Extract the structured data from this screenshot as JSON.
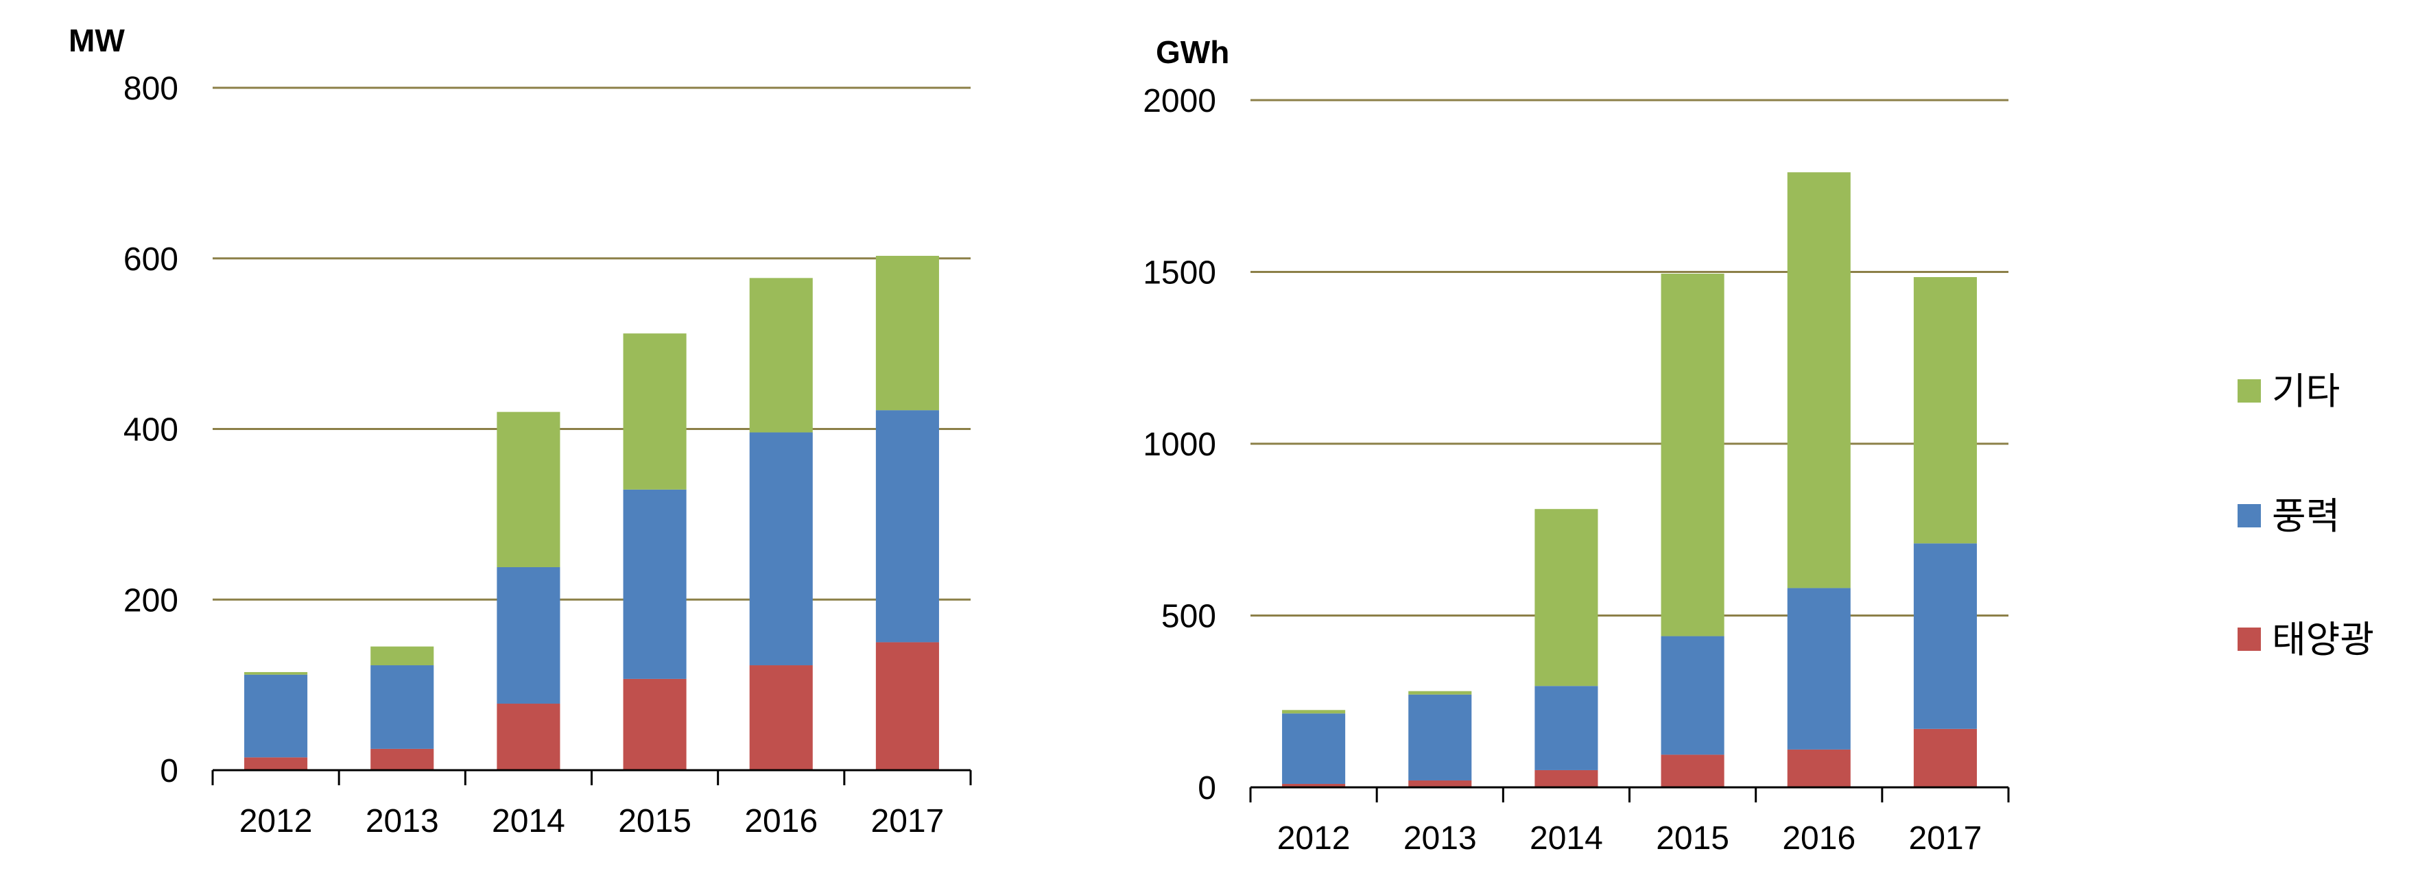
{
  "colors": {
    "solar": "#c0504d",
    "wind": "#4f81bd",
    "other": "#9bbb59",
    "grid": "#8c8048",
    "axis": "#000000"
  },
  "legend": [
    {
      "key": "other",
      "label": "기타"
    },
    {
      "key": "wind",
      "label": "풍력"
    },
    {
      "key": "solar",
      "label": "태양광"
    }
  ],
  "chart_data": [
    {
      "type": "bar",
      "stacked": true,
      "ylabel": "MW",
      "ylim": [
        0,
        800
      ],
      "yticks": [
        0,
        200,
        400,
        600,
        800
      ],
      "grid": true,
      "categories": [
        "2012",
        "2013",
        "2014",
        "2015",
        "2016",
        "2017"
      ],
      "series": [
        {
          "name": "태양광",
          "key": "solar",
          "values": [
            15,
            25,
            78,
            107,
            123,
            150
          ]
        },
        {
          "name": "풍력",
          "key": "wind",
          "values": [
            97,
            98,
            160,
            222,
            273,
            272
          ]
        },
        {
          "name": "기타",
          "key": "other",
          "values": [
            3,
            22,
            182,
            183,
            181,
            181
          ]
        }
      ]
    },
    {
      "type": "bar",
      "stacked": true,
      "ylabel": "GWh",
      "ylim": [
        0,
        2000
      ],
      "yticks": [
        0,
        500,
        1000,
        1500,
        2000
      ],
      "grid": true,
      "categories": [
        "2012",
        "2013",
        "2014",
        "2015",
        "2016",
        "2017"
      ],
      "series": [
        {
          "name": "태양광",
          "key": "solar",
          "values": [
            10,
            20,
            50,
            95,
            110,
            170
          ]
        },
        {
          "name": "풍력",
          "key": "wind",
          "values": [
            205,
            250,
            245,
            345,
            470,
            540
          ]
        },
        {
          "name": "기타",
          "key": "other",
          "values": [
            10,
            10,
            515,
            1055,
            1210,
            775
          ]
        }
      ]
    }
  ]
}
